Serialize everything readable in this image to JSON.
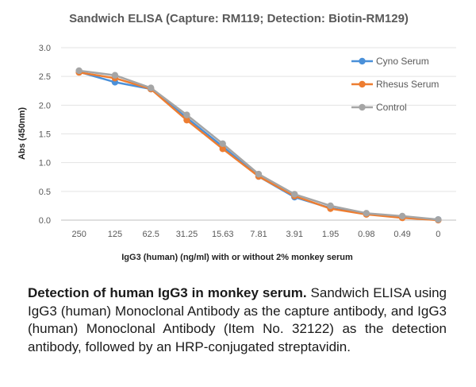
{
  "chart_data": {
    "type": "line",
    "title": "Sandwich ELISA (Capture: RM119; Detection: Biotin-RM129)",
    "xlabel": "IgG3 (human) (ng/ml) with or without 2% monkey serum",
    "ylabel": "Abs (450nm)",
    "categories": [
      "250",
      "125",
      "62.5",
      "31.25",
      "15.63",
      "7.81",
      "3.91",
      "1.95",
      "0.98",
      "0.49",
      "0"
    ],
    "ylim": [
      0,
      3.0
    ],
    "yticks": [
      "0.0",
      "0.5",
      "1.0",
      "1.5",
      "2.0",
      "2.5",
      "3.0"
    ],
    "grid": true,
    "legend_position": "top-right",
    "series": [
      {
        "name": "Cyno Serum",
        "color": "#4a90d9",
        "values": [
          2.58,
          2.4,
          2.28,
          1.78,
          1.28,
          0.76,
          0.4,
          0.21,
          0.11,
          0.05,
          0.01
        ]
      },
      {
        "name": "Rhesus Serum",
        "color": "#ed7d31",
        "values": [
          2.57,
          2.47,
          2.28,
          1.74,
          1.24,
          0.76,
          0.42,
          0.2,
          0.1,
          0.04,
          0.0
        ]
      },
      {
        "name": "Control",
        "color": "#a5a5a5",
        "values": [
          2.6,
          2.52,
          2.3,
          1.83,
          1.33,
          0.8,
          0.45,
          0.25,
          0.12,
          0.07,
          0.01
        ]
      }
    ]
  },
  "caption": {
    "bold": "Detection of human IgG3 in monkey serum.",
    "text": " Sandwich ELISA using IgG3 (human) Monoclonal Antibody as the capture antibody, and IgG3 (human) Monoclonal Antibody (Item No. 32122) as the detection antibody, followed by an HRP-conjugated streptavidin."
  }
}
